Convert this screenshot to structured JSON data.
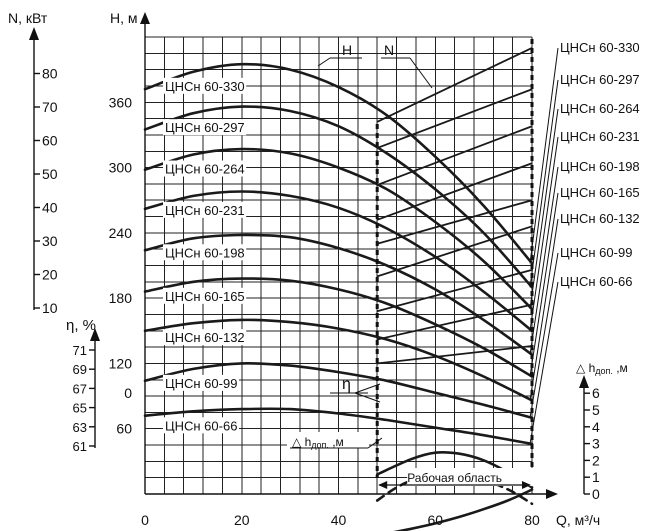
{
  "chart_data": {
    "type": "line",
    "x_axis": {
      "label_q": "Q, м",
      "label_unit": "³/ч",
      "range": [
        0,
        80
      ],
      "ticks": [
        "0",
        "20",
        "40",
        "60",
        "80"
      ]
    },
    "y_axis_head": {
      "label": "H, м",
      "range": [
        0,
        420
      ],
      "ticks": [
        "0",
        "60",
        "120",
        "180",
        "240",
        "300",
        "360"
      ]
    },
    "y_axis_power": {
      "label": "N, кВт",
      "ticks": [
        "10",
        "20",
        "30",
        "40",
        "50",
        "60",
        "70",
        "80"
      ]
    },
    "y_axis_eff": {
      "label": "η, %",
      "ticks": [
        "61",
        "63",
        "65",
        "67",
        "69",
        "71"
      ]
    },
    "y_axis_npsh": {
      "label_main": "△ h",
      "label_sub": "доп.",
      "label_unit": " ,м",
      "ticks": [
        "0",
        "1",
        "2",
        "3",
        "4",
        "5",
        "6"
      ]
    },
    "working_area_label": "Рабочая область",
    "working_area_q": [
      48,
      80
    ],
    "series_labels": {
      "H": "H",
      "N": "N",
      "eta": "η",
      "dh_main": "△ h",
      "dh_sub": "доп.",
      "dh_unit": " ,м"
    },
    "pumps": [
      {
        "name": "ЦНСн 60-330",
        "H": [
          [
            0,
            372
          ],
          [
            10,
            388
          ],
          [
            20,
            395
          ],
          [
            30,
            390
          ],
          [
            40,
            374
          ],
          [
            50,
            348
          ],
          [
            60,
            310
          ],
          [
            70,
            265
          ],
          [
            80,
            212
          ]
        ],
        "N": [
          [
            48,
            342
          ],
          [
            80,
            410
          ]
        ]
      },
      {
        "name": "ЦНСн 60-297",
        "H": [
          [
            0,
            335
          ],
          [
            10,
            350
          ],
          [
            20,
            356
          ],
          [
            30,
            352
          ],
          [
            40,
            338
          ],
          [
            50,
            313
          ],
          [
            60,
            280
          ],
          [
            70,
            240
          ],
          [
            80,
            190
          ]
        ],
        "N": [
          [
            48,
            318
          ],
          [
            80,
            372
          ]
        ]
      },
      {
        "name": "ЦНСн 60-264",
        "H": [
          [
            0,
            298
          ],
          [
            10,
            312
          ],
          [
            20,
            317
          ],
          [
            30,
            313
          ],
          [
            40,
            300
          ],
          [
            50,
            280
          ],
          [
            60,
            250
          ],
          [
            70,
            214
          ],
          [
            80,
            170
          ]
        ],
        "N": [
          [
            48,
            284
          ],
          [
            80,
            338
          ]
        ]
      },
      {
        "name": "ЦНСн 60-231",
        "H": [
          [
            0,
            262
          ],
          [
            10,
            274
          ],
          [
            20,
            278
          ],
          [
            30,
            274
          ],
          [
            40,
            263
          ],
          [
            50,
            244
          ],
          [
            60,
            218
          ],
          [
            70,
            186
          ],
          [
            80,
            150
          ]
        ],
        "N": [
          [
            48,
            252
          ],
          [
            80,
            304
          ]
        ]
      },
      {
        "name": "ЦНСн 60-198",
        "H": [
          [
            0,
            224
          ],
          [
            10,
            235
          ],
          [
            20,
            238
          ],
          [
            30,
            236
          ],
          [
            40,
            226
          ],
          [
            50,
            210
          ],
          [
            60,
            188
          ],
          [
            70,
            160
          ],
          [
            80,
            128
          ]
        ],
        "N": [
          [
            48,
            230
          ],
          [
            80,
            270
          ]
        ]
      },
      {
        "name": "ЦНСн 60-165",
        "H": [
          [
            0,
            186
          ],
          [
            10,
            195
          ],
          [
            20,
            198
          ],
          [
            30,
            196
          ],
          [
            40,
            188
          ],
          [
            50,
            175
          ],
          [
            60,
            156
          ],
          [
            70,
            134
          ],
          [
            80,
            108
          ]
        ],
        "N": [
          [
            48,
            200
          ],
          [
            80,
            246
          ]
        ]
      },
      {
        "name": "ЦНСн 60-132",
        "H": [
          [
            0,
            150
          ],
          [
            10,
            157
          ],
          [
            20,
            160
          ],
          [
            30,
            158
          ],
          [
            40,
            152
          ],
          [
            50,
            142
          ],
          [
            60,
            127
          ],
          [
            70,
            108
          ],
          [
            80,
            86
          ]
        ],
        "N": [
          [
            48,
            168
          ],
          [
            80,
            206
          ]
        ]
      },
      {
        "name": "ЦНСн 60-99",
        "H": [
          [
            0,
            104
          ],
          [
            10,
            115
          ],
          [
            20,
            120
          ],
          [
            30,
            118
          ],
          [
            40,
            112
          ],
          [
            50,
            104
          ],
          [
            60,
            93
          ],
          [
            70,
            82
          ],
          [
            80,
            70
          ]
        ],
        "N": [
          [
            48,
            142
          ],
          [
            80,
            174
          ]
        ]
      },
      {
        "name": "ЦНСн 60-66",
        "H": [
          [
            0,
            72
          ],
          [
            10,
            76
          ],
          [
            20,
            78
          ],
          [
            30,
            78
          ],
          [
            40,
            74
          ],
          [
            50,
            68
          ],
          [
            60,
            61
          ],
          [
            70,
            54
          ],
          [
            80,
            46
          ]
        ],
        "N": [
          [
            48,
            120
          ],
          [
            80,
            136
          ]
        ]
      }
    ],
    "eta_curve": [
      [
        48,
        18
      ],
      [
        55,
        32
      ],
      [
        60,
        38
      ],
      [
        65,
        37
      ],
      [
        70,
        31
      ],
      [
        75,
        20
      ],
      [
        80,
        6
      ]
    ],
    "eta_dashed": [
      [
        48,
        -6
      ],
      [
        52,
        6
      ],
      [
        56,
        14
      ],
      [
        60,
        19
      ],
      [
        64,
        20
      ],
      [
        68,
        17
      ],
      [
        72,
        10
      ],
      [
        76,
        2
      ],
      [
        80,
        -9
      ]
    ],
    "dh_curve": [
      [
        48,
        -38
      ],
      [
        55,
        -32
      ],
      [
        60,
        -27
      ],
      [
        65,
        -21
      ],
      [
        70,
        -14
      ],
      [
        75,
        -6
      ],
      [
        80,
        4
      ]
    ]
  }
}
